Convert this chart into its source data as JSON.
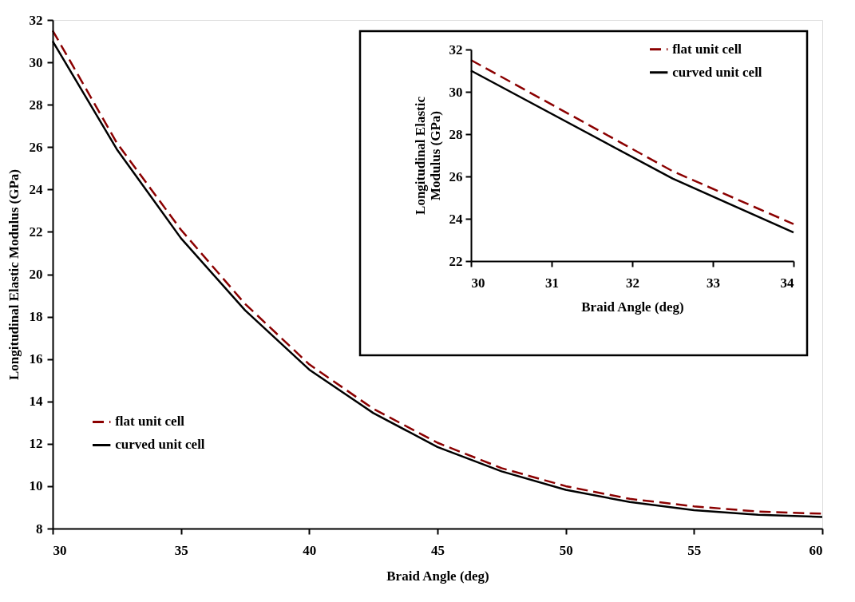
{
  "chart_data": [
    {
      "type": "line",
      "xlabel": "Braid Angle (deg)",
      "ylabel": "Longitudinal Elastic Modulus (GPa)",
      "x": [
        30,
        32.5,
        35,
        37.5,
        40,
        42.5,
        45,
        47.5,
        50,
        52.5,
        55,
        57.5,
        60
      ],
      "xlim": [
        30,
        60
      ],
      "ylim": [
        8,
        32
      ],
      "xticks": [
        30,
        35,
        40,
        45,
        50,
        55,
        60
      ],
      "yticks": [
        8,
        10,
        12,
        14,
        16,
        18,
        20,
        22,
        24,
        26,
        28,
        30,
        32
      ],
      "legend": "bottom left",
      "series": [
        {
          "name": "flat unit cell",
          "color": "#8b0000",
          "line_style": "dashed",
          "values": [
            31.5,
            26.2,
            22.1,
            18.6,
            15.75,
            13.65,
            12.05,
            10.85,
            10.0,
            9.4,
            9.05,
            8.8,
            8.7
          ]
        },
        {
          "name": "curved unit cell",
          "color": "#000000",
          "line_style": "solid",
          "values": [
            31.0,
            25.9,
            21.7,
            18.3,
            15.5,
            13.45,
            11.85,
            10.7,
            9.83,
            9.25,
            8.87,
            8.65,
            8.55
          ]
        }
      ]
    },
    {
      "type": "line",
      "xlabel": "Braid Angle (deg)",
      "ylabel": "Longitudinal Elastic Modulus (GPa)",
      "x": [
        30,
        32.5,
        34
      ],
      "xlim": [
        30,
        34
      ],
      "ylim": [
        22,
        32
      ],
      "xticks": [
        30,
        31,
        32,
        33,
        34
      ],
      "yticks": [
        22,
        24,
        26,
        28,
        30,
        32
      ],
      "legend": "top right",
      "series": [
        {
          "name": "flat unit cell",
          "color": "#8b0000",
          "line_style": "dashed",
          "values": [
            31.5,
            26.25,
            23.75
          ]
        },
        {
          "name": "curved unit cell",
          "color": "#000000",
          "line_style": "solid",
          "values": [
            31.0,
            25.9,
            23.35
          ]
        }
      ]
    }
  ]
}
